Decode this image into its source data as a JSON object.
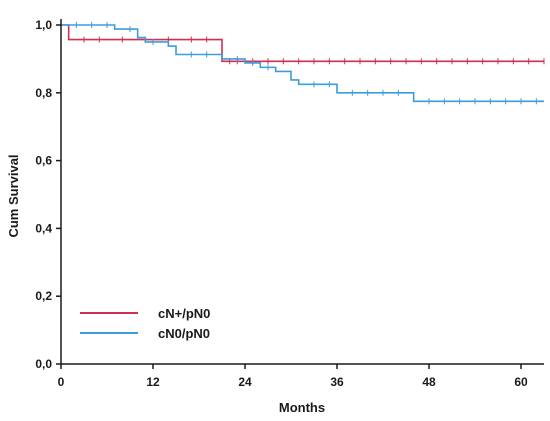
{
  "chart_data": {
    "type": "line",
    "subtype": "kaplan-meier step curve with censor ticks",
    "xlabel": "Months",
    "ylabel": "Cum Survival",
    "xlim": [
      0,
      63
    ],
    "ylim": [
      0,
      1.0
    ],
    "x_ticks": [
      "0",
      "12",
      "24",
      "36",
      "48",
      "60"
    ],
    "x_tick_values": [
      0,
      12,
      24,
      36,
      48,
      60
    ],
    "y_ticks": [
      "0,0",
      "0,2",
      "0,4",
      "0,6",
      "0,8",
      "1,0"
    ],
    "y_tick_values": [
      0,
      0.2,
      0.4,
      0.6,
      0.8,
      1.0
    ],
    "grid": false,
    "legend_position": "bottom-left",
    "series": [
      {
        "name": "cN+/pN0",
        "color": "#d0304f",
        "steps": [
          [
            0,
            1.0
          ],
          [
            1,
            0.957
          ],
          [
            21,
            0.893
          ],
          [
            63,
            0.893
          ]
        ],
        "censored": [
          3,
          5,
          8,
          11,
          14,
          17,
          19,
          22,
          23,
          25,
          27,
          29,
          31,
          33,
          35,
          37,
          39,
          41,
          43,
          45,
          47,
          49,
          51,
          53,
          55,
          57,
          59,
          61,
          63
        ]
      },
      {
        "name": "cN0/pN0",
        "color": "#3d9dd9",
        "steps": [
          [
            0,
            1.0
          ],
          [
            7,
            0.988
          ],
          [
            10,
            0.963
          ],
          [
            11,
            0.95
          ],
          [
            14,
            0.938
          ],
          [
            15,
            0.913
          ],
          [
            21,
            0.9
          ],
          [
            24,
            0.888
          ],
          [
            26,
            0.875
          ],
          [
            28,
            0.863
          ],
          [
            30,
            0.838
          ],
          [
            31,
            0.825
          ],
          [
            36,
            0.8
          ],
          [
            46,
            0.775
          ],
          [
            63,
            0.775
          ]
        ],
        "censored": [
          2,
          4,
          6,
          9,
          12,
          17,
          19,
          23,
          25,
          27,
          33,
          35,
          38,
          40,
          42,
          44,
          48,
          50,
          52,
          54,
          56,
          58,
          60,
          62
        ]
      }
    ]
  }
}
